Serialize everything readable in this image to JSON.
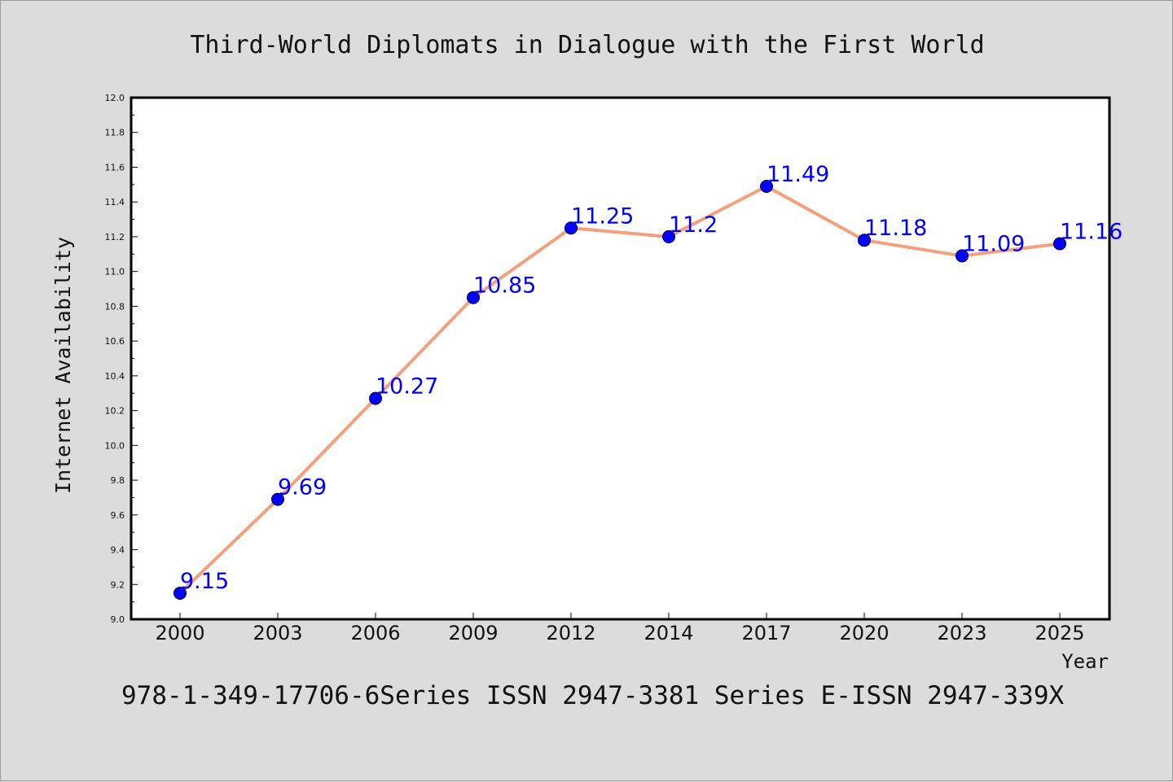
{
  "chart_data": {
    "type": "line",
    "title": "Third-World Diplomats in Dialogue with the First World",
    "xlabel": "Year",
    "ylabel": "Internet Availability",
    "categories": [
      "2000",
      "2003",
      "2006",
      "2009",
      "2012",
      "2014",
      "2017",
      "2020",
      "2023",
      "2025"
    ],
    "series": [
      {
        "values": [
          9.15,
          9.69,
          10.27,
          10.85,
          11.25,
          11.2,
          11.49,
          11.18,
          11.09,
          11.16
        ]
      }
    ],
    "data_labels": [
      "9.15",
      "9.69",
      "10.27",
      "10.85",
      "11.25",
      "11.2",
      "11.49",
      "11.18",
      "11.09",
      "11.16"
    ],
    "ylim": [
      9.0,
      12.0
    ],
    "yticks": [
      "9.0",
      "9.2",
      "9.4",
      "9.6",
      "9.8",
      "10.0",
      "10.2",
      "10.4",
      "10.6",
      "10.8",
      "11.0",
      "11.2",
      "11.4",
      "11.6",
      "11.8",
      "12.0"
    ],
    "grid": false,
    "legend": "none",
    "line_color": "#f4a07c",
    "marker_color": "#0000ff",
    "label_color": "#0000ff",
    "background": "#dcdcdc",
    "plot_background": "#ffffff"
  },
  "footer": "978-1-349-17706-6Series ISSN 2947-3381 Series E-ISSN 2947-339X"
}
